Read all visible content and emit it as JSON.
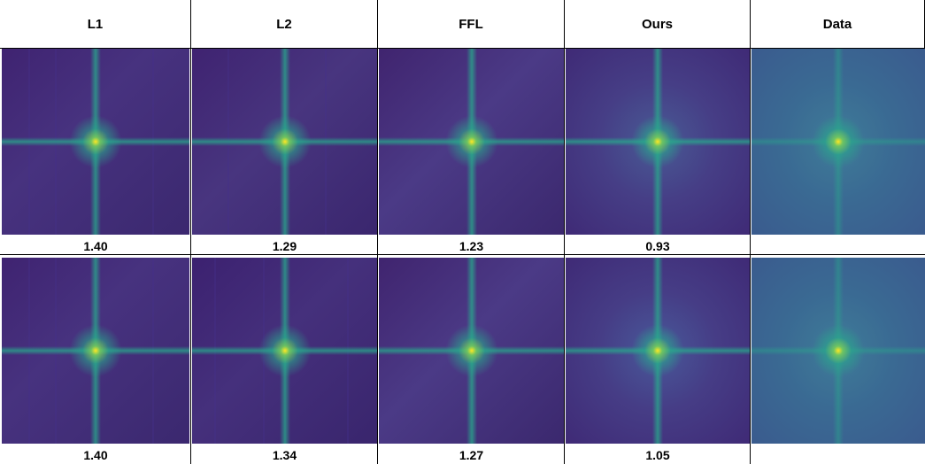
{
  "columns": [
    {
      "label": "L1"
    },
    {
      "label": "L2"
    },
    {
      "label": "FFL"
    },
    {
      "label": "Ours"
    },
    {
      "label": "Data"
    }
  ],
  "rows": [
    {
      "values": [
        "1.40",
        "1.29",
        "1.23",
        "0.93",
        ""
      ]
    },
    {
      "values": [
        "1.40",
        "1.34",
        "1.27",
        "1.05",
        ""
      ]
    }
  ],
  "colors": {
    "purple_dark": "#3d1f6e",
    "purple": "#46307f",
    "teal": "#2aa48c",
    "yellow": "#fde725",
    "data_blue": "#3a6c95"
  }
}
